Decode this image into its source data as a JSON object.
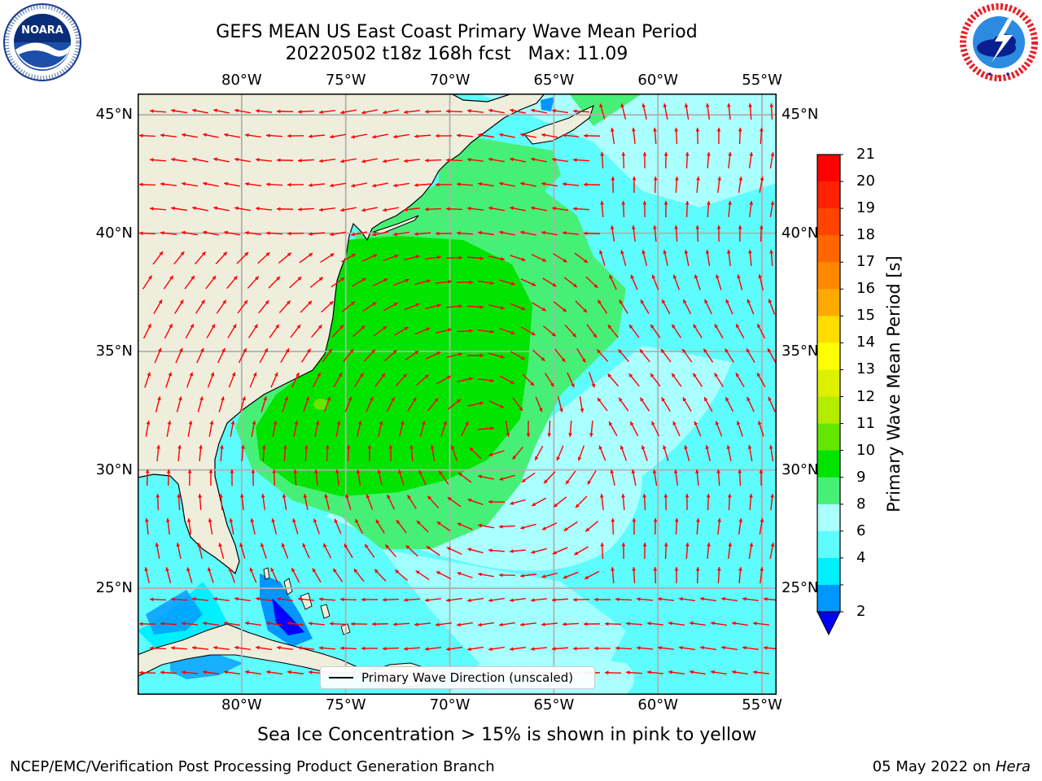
{
  "header": {
    "title_line1": "GEFS MEAN US East Coast Primary Wave Mean Period",
    "title_line2": "20220502 t18z 168h fcst   Max: 11.09"
  },
  "logos": {
    "left": {
      "name": "NOARA",
      "ring_text": "NATIONAL OCEANIC AND ATMOSPHERIC ADMINISTRATION · U.S. DEPARTMENT OF COMMERCE"
    },
    "right": {
      "ring_text": "NATIONAL WEATHER SERVICE"
    }
  },
  "map": {
    "lon_ticks": [
      "80°W",
      "75°W",
      "70°W",
      "65°W",
      "60°W",
      "55°W"
    ],
    "lat_ticks": [
      "45°N",
      "40°N",
      "35°N",
      "30°N",
      "25°N"
    ],
    "extent": {
      "lon_min": -85,
      "lon_max": -54.3,
      "lat_min": 20.5,
      "lat_max": 45.9
    },
    "max_value": 11.09,
    "legend_label": "Primary Wave Direction (unscaled)",
    "colors": {
      "land": "#efeedd",
      "grid": "#b0b0b0",
      "arrow": "#ff0000",
      "coast": "#000000"
    }
  },
  "colorbar": {
    "label": "Primary Wave Mean Period [s]",
    "ticks": [
      "21",
      "20",
      "19",
      "18",
      "17",
      "16",
      "15",
      "14",
      "13",
      "12",
      "11",
      "10",
      "9",
      "8",
      "6",
      "4",
      "2"
    ],
    "colors": [
      "#ff0000",
      "#ff2200",
      "#ff4400",
      "#ff6600",
      "#ff8800",
      "#ffaa00",
      "#ffdd00",
      "#ffff00",
      "#dcf000",
      "#b4ec00",
      "#64e600",
      "#00e400",
      "#46f076",
      "#aaffff",
      "#5efcfc",
      "#00f0ff",
      "#0096ff"
    ],
    "extend_color": "#0000ff"
  },
  "caption": "Sea Ice Concentration > 15% is shown in pink to yellow",
  "footer": {
    "left": "NCEP/EMC/Verification Post Processing Product Generation Branch",
    "right_date": "05 May 2022 on ",
    "right_host": "Hera"
  }
}
